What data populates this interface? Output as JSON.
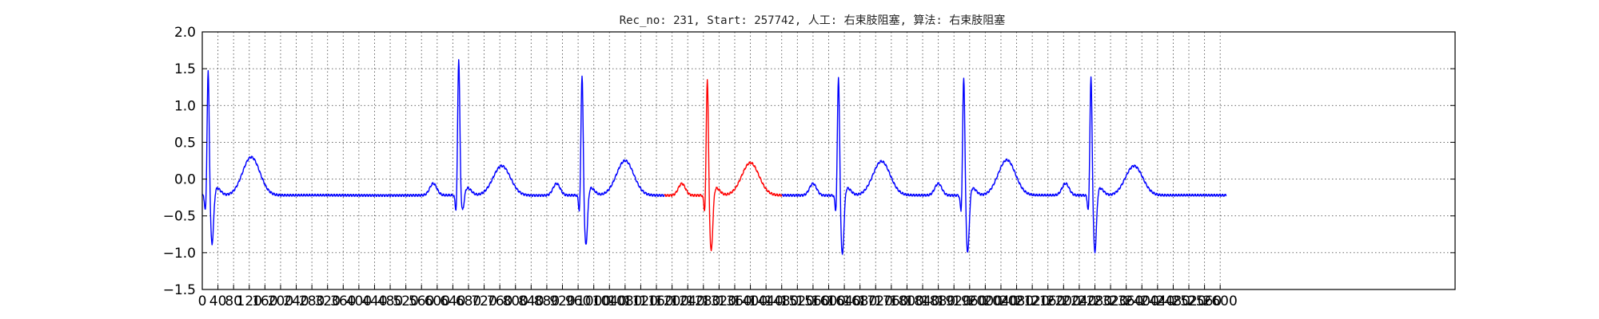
{
  "chart_data": {
    "type": "line",
    "title": "Rec_no: 231, Start: 257742, 人工: 右束肢阻塞, 算法: 右束肢阻塞",
    "xlabel": "",
    "ylabel": "",
    "xlim": [
      0,
      3200
    ],
    "ylim": [
      -1.5,
      2.0
    ],
    "grid": true,
    "x_tick_labels": [
      "0",
      "40",
      "80",
      "120",
      "160",
      "200",
      "240",
      "280",
      "320",
      "360",
      "400",
      "440",
      "480",
      "520",
      "560",
      "600",
      "640",
      "680",
      "720",
      "760",
      "800",
      "840",
      "880",
      "920",
      "960",
      "1000",
      "1040",
      "1080",
      "1120",
      "1160",
      "1200",
      "1240",
      "1280",
      "1320",
      "1360",
      "1400",
      "1440",
      "1480",
      "1520",
      "1560",
      "1600",
      "1640",
      "1680",
      "1720",
      "1760",
      "1800",
      "1840",
      "1880",
      "1920",
      "1960",
      "2000",
      "2040",
      "2080",
      "2120",
      "2160",
      "2200",
      "2240",
      "2280",
      "2320",
      "2360",
      "2400",
      "2440",
      "2480",
      "2520",
      "2560",
      "2600"
    ],
    "y_ticks": [
      -1.5,
      -1.0,
      -0.5,
      0.0,
      0.5,
      1.0,
      1.5,
      2.0
    ],
    "y_tick_labels": [
      "−1.5",
      "−1.0",
      "−0.5",
      "0.0",
      "0.5",
      "1.0",
      "1.5",
      "2.0"
    ],
    "colors": {
      "normal": "#0000ff",
      "highlight": "#ff0000",
      "grid": "#555555"
    },
    "beats": [
      {
        "r": 15,
        "r_amp": 1.4,
        "s_amp": -0.88,
        "t_amp": 0.3,
        "color": "#0000ff"
      },
      {
        "r": 655,
        "r_amp": 1.55,
        "s_amp": -0.42,
        "t_amp": 0.18,
        "color": "#0000ff"
      },
      {
        "r": 970,
        "r_amp": 1.35,
        "s_amp": -0.9,
        "t_amp": 0.25,
        "color": "#0000ff"
      },
      {
        "r": 1290,
        "r_amp": 1.3,
        "s_amp": -0.98,
        "t_amp": 0.22,
        "color": "#ff0000"
      },
      {
        "r": 1625,
        "r_amp": 1.33,
        "s_amp": -1.03,
        "t_amp": 0.24,
        "color": "#0000ff"
      },
      {
        "r": 1945,
        "r_amp": 1.33,
        "s_amp": -1.0,
        "t_amp": 0.26,
        "color": "#0000ff"
      },
      {
        "r": 2270,
        "r_amp": 1.32,
        "s_amp": -0.99,
        "t_amp": 0.18,
        "color": "#0000ff"
      }
    ],
    "series": [
      {
        "x_start": 0,
        "x_end": 2615,
        "baseline": -0.22
      }
    ]
  }
}
